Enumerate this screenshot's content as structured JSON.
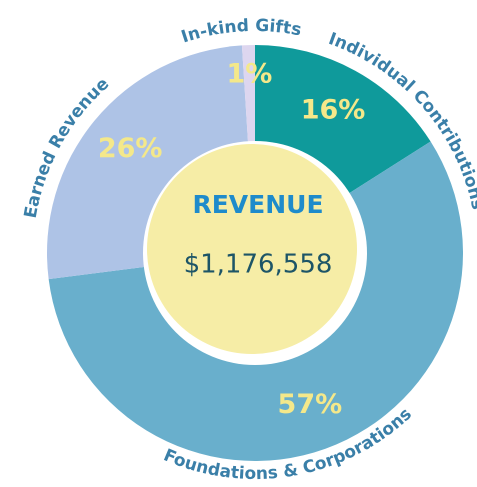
{
  "chart_data": {
    "type": "donut",
    "center_title": "REVENUE",
    "center_value": "$1,176,558",
    "categories": [
      "Individual Contributions",
      "Foundations & Corporations",
      "Earned Revenue",
      "In-kind Gifts"
    ],
    "values": [
      16,
      57,
      26,
      1
    ],
    "value_labels": [
      "16%",
      "57%",
      "26%",
      "1%"
    ],
    "colors": [
      "#0f9a9b",
      "#69afcc",
      "#aec3e6",
      "#ddd6ef"
    ]
  }
}
